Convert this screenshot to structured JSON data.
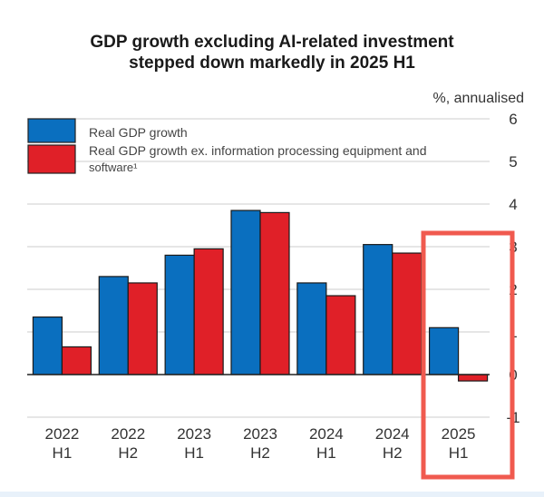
{
  "chart_data": {
    "type": "bar",
    "title": "GDP growth excluding AI-related investment stepped down markedly in 2025 H1",
    "title_lines": [
      "GDP growth excluding AI-related investment",
      "stepped down markedly in 2025 H1"
    ],
    "unit_label": "%, annualised",
    "xlabel": "",
    "ylabel": "%, annualised",
    "ylim": [
      -1,
      6
    ],
    "yticks": [
      6,
      5,
      4,
      3,
      2,
      1,
      0,
      -1
    ],
    "grid": true,
    "legend_position": "top-left",
    "categories": [
      {
        "year": "2022",
        "half": "H1"
      },
      {
        "year": "2022",
        "half": "H2"
      },
      {
        "year": "2023",
        "half": "H1"
      },
      {
        "year": "2023",
        "half": "H2"
      },
      {
        "year": "2024",
        "half": "H1"
      },
      {
        "year": "2024",
        "half": "H2"
      },
      {
        "year": "2025",
        "half": "H1"
      }
    ],
    "series": [
      {
        "name": "Real GDP growth",
        "color": "#0a6fbf",
        "values": [
          1.35,
          2.3,
          2.8,
          3.85,
          2.15,
          3.05,
          1.1
        ]
      },
      {
        "name": "Real GDP growth ex. information processing equipment and software",
        "footnote": "1",
        "color": "#e02028",
        "values": [
          0.65,
          2.15,
          2.95,
          3.8,
          1.85,
          2.85,
          -0.15
        ]
      }
    ],
    "legend": [
      {
        "line1": "Real GDP growth",
        "line2": ""
      },
      {
        "line1": "Real GDP growth ex. information processing equipment and",
        "line2": "software¹"
      }
    ],
    "annotation": {
      "type": "highlight-box",
      "category": "2025 H1",
      "color": "#f05a4f"
    }
  }
}
